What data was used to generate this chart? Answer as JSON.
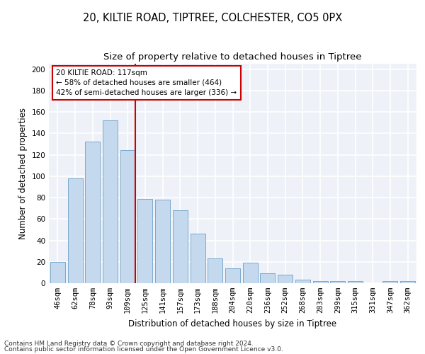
{
  "title1": "20, KILTIE ROAD, TIPTREE, COLCHESTER, CO5 0PX",
  "title2": "Size of property relative to detached houses in Tiptree",
  "xlabel": "Distribution of detached houses by size in Tiptree",
  "ylabel": "Number of detached properties",
  "categories": [
    "46sqm",
    "62sqm",
    "78sqm",
    "93sqm",
    "109sqm",
    "125sqm",
    "141sqm",
    "157sqm",
    "173sqm",
    "188sqm",
    "204sqm",
    "220sqm",
    "236sqm",
    "252sqm",
    "268sqm",
    "283sqm",
    "299sqm",
    "315sqm",
    "331sqm",
    "347sqm",
    "362sqm"
  ],
  "values": [
    20,
    98,
    132,
    152,
    124,
    79,
    78,
    68,
    46,
    23,
    14,
    19,
    9,
    8,
    3,
    2,
    2,
    2,
    0,
    2,
    2
  ],
  "bar_color": "#c5d9ee",
  "bar_edge_color": "#6a9fc8",
  "vline_pos": 4.45,
  "annotation_line1": "20 KILTIE ROAD: 117sqm",
  "annotation_line2": "← 58% of detached houses are smaller (464)",
  "annotation_line3": "42% of semi-detached houses are larger (336) →",
  "annotation_box_color": "#ffffff",
  "annotation_box_edge_color": "#cc0000",
  "ylim": [
    0,
    205
  ],
  "yticks": [
    0,
    20,
    40,
    60,
    80,
    100,
    120,
    140,
    160,
    180,
    200
  ],
  "footer1": "Contains HM Land Registry data © Crown copyright and database right 2024.",
  "footer2": "Contains public sector information licensed under the Open Government Licence v3.0.",
  "bg_color": "#eef2f8",
  "grid_color": "#ffffff",
  "title1_fontsize": 10.5,
  "title2_fontsize": 9.5,
  "axis_label_fontsize": 8.5,
  "tick_fontsize": 7.5,
  "annotation_fontsize": 7.5,
  "footer_fontsize": 6.5
}
